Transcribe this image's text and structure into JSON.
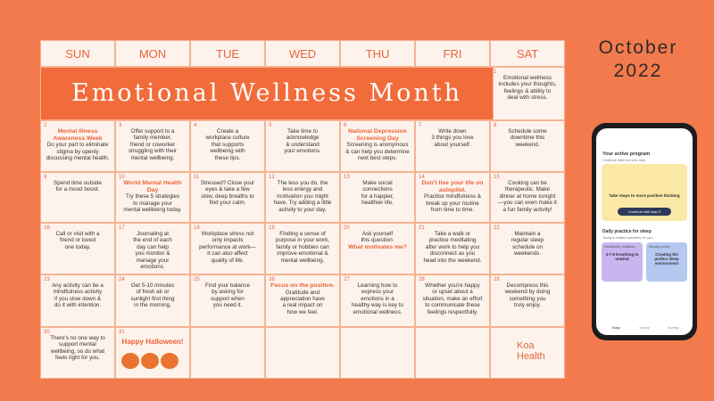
{
  "header": {
    "month": "October",
    "year": "2022"
  },
  "calendar": {
    "weekdays": [
      "SUN",
      "MON",
      "TUE",
      "WED",
      "THU",
      "FRI",
      "SAT"
    ],
    "title": "Emotional Wellness Month",
    "days": [
      {
        "number": "1",
        "lines": [
          "Emotional wellness",
          "includes your thoughts,",
          "feelings & ability to",
          "deal with stress."
        ]
      },
      {
        "number": "2",
        "heading": "Mental Illness Awareness Week",
        "lines": [
          "Do your part to eliminate",
          "stigma by openly",
          "discussing mental health."
        ]
      },
      {
        "number": "3",
        "lines": [
          "Offer support to a",
          "family member,",
          "friend or coworker",
          "struggling with their",
          "mental wellbeing."
        ]
      },
      {
        "number": "4",
        "lines": [
          "Create a",
          "workplace culture",
          "that supports",
          "wellbeing with",
          "these tips."
        ]
      },
      {
        "number": "5",
        "lines": [
          "Take time to",
          "acknowledge",
          "& understand",
          "your emotions."
        ]
      },
      {
        "number": "6",
        "heading": "National Depression Screening Day",
        "lines": [
          "Screening is anonymous",
          "& can help you determine",
          "next best steps."
        ]
      },
      {
        "number": "7",
        "lines": [
          "Write down",
          "3 things you love",
          "about yourself."
        ]
      },
      {
        "number": "8",
        "lines": [
          "Schedule some",
          "downtime this",
          "weekend."
        ]
      },
      {
        "number": "9",
        "lines": [
          "Spend time outside",
          "for a mood boost."
        ]
      },
      {
        "number": "10",
        "heading": "World Mental Health Day",
        "lines": [
          "Try these 5 strategies",
          "to manage your",
          "mental wellbeing today."
        ]
      },
      {
        "number": "11",
        "lines": [
          "Stressed? Close your",
          "eyes & take a few",
          "slow, deep breaths to",
          "find your calm."
        ]
      },
      {
        "number": "12",
        "lines": [
          "The less you do, the",
          "less energy and",
          "motivation you might",
          "have. Try adding a little",
          "activity to your day."
        ]
      },
      {
        "number": "13",
        "lines": [
          "Make social",
          "connections",
          "for a happier,",
          "healthier life."
        ]
      },
      {
        "number": "14",
        "heading": "Don't live your life on autopilot.",
        "lines": [
          "Practice mindfulness &",
          "break up your routine",
          "from time to time."
        ]
      },
      {
        "number": "15",
        "lines": [
          "Cooking can be",
          "therapeutic. Make",
          "dinner at home tonight",
          "—you can even make it",
          "a fun family activity!"
        ]
      },
      {
        "number": "16",
        "lines": [
          "Call or visit with a",
          "friend or loved",
          "one today."
        ]
      },
      {
        "number": "17",
        "lines": [
          "Journaling at",
          "the end of each",
          "day can help",
          "you monitor &",
          "manage your",
          "emotions."
        ]
      },
      {
        "number": "18",
        "lines": [
          "Workplace stress not",
          "only impacts",
          "performance at work—",
          "it can also affect",
          "quality of life."
        ]
      },
      {
        "number": "19",
        "lines": [
          "Finding a sense of",
          "purpose in your work,",
          "family or hobbies can",
          "improve emotional &",
          "mental wellbeing."
        ]
      },
      {
        "number": "20",
        "lines": [
          "Ask yourself",
          "this question:"
        ],
        "highlight": "What motivates me?"
      },
      {
        "number": "21",
        "lines": [
          "Take a walk or",
          "practice meditating",
          "after work to help you",
          "disconnect as you",
          "head into the weekend."
        ]
      },
      {
        "number": "22",
        "lines": [
          "Maintain a",
          "regular sleep",
          "schedule on",
          "weekends."
        ]
      },
      {
        "number": "23",
        "lines": [
          "Any activity can be a",
          "mindfulness activity",
          "if you slow down &",
          "do it with intention."
        ]
      },
      {
        "number": "24",
        "lines": [
          "Get 5-10 minutes",
          "of fresh air or",
          "sunlight first thing",
          "in the morning."
        ]
      },
      {
        "number": "25",
        "lines": [
          "Find your balance",
          "by asking for",
          "support when",
          "you need it."
        ]
      },
      {
        "number": "26",
        "heading": "Focus on the positive.",
        "lines": [
          "Gratitude and",
          "appreciation have",
          "a real impact on",
          "how we feel."
        ]
      },
      {
        "number": "27",
        "lines": [
          "Learning how to",
          "express your",
          "emotions in a",
          "healthy way is key to",
          "emotional wellness."
        ]
      },
      {
        "number": "28",
        "lines": [
          "Whether you're happy",
          "or upset about a",
          "situation, make an effort",
          "to communicate these",
          "feelings respectfully."
        ]
      },
      {
        "number": "29",
        "lines": [
          "Decompress this",
          "weekend by doing",
          "something you",
          "truly enjoy."
        ]
      },
      {
        "number": "30",
        "lines": [
          "There's no one way to",
          "support mental",
          "wellbeing, so do what",
          "feels right for you."
        ]
      },
      {
        "number": "31",
        "heading": "Happy Halloween!"
      }
    ]
  },
  "logo": "Koa Health",
  "phone": {
    "section": "Your active program",
    "subtitle": "Continue with the next step",
    "card_title": "Take steps to more positive thinking",
    "button": "Continue with step 3",
    "practice": "Daily practice for sleep",
    "practice_sub": "Today's related activities for you",
    "cards": [
      {
        "tag": "Mindfulness meditation",
        "title": "4-7-8 breathing to unwind"
      },
      {
        "tag": "Morning routine",
        "title": "Creating the perfect sleep environment"
      }
    ],
    "nav": [
      "Today",
      "Library",
      "Journey"
    ]
  }
}
